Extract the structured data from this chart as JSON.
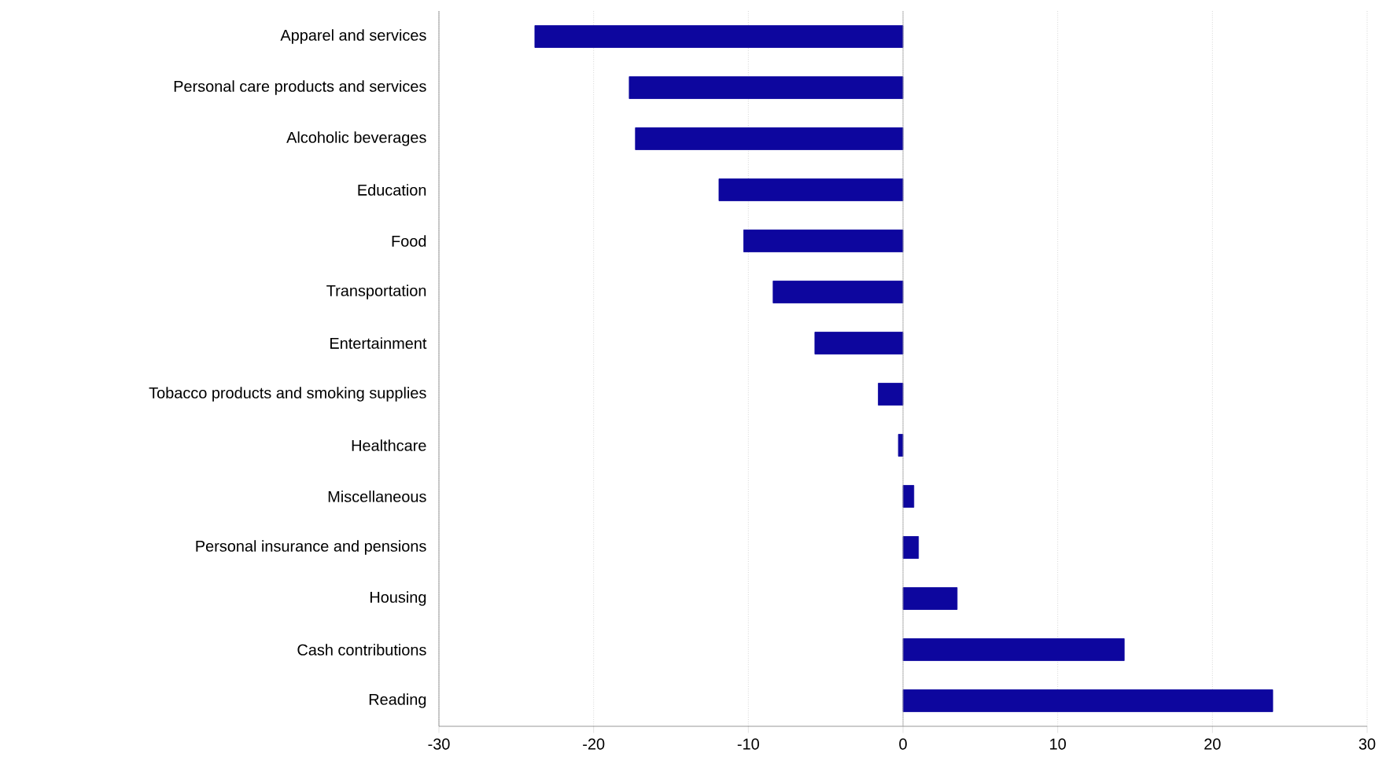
{
  "chart_data": {
    "type": "bar",
    "orientation": "horizontal",
    "categories": [
      "Apparel and services",
      "Personal care products and services",
      "Alcoholic beverages",
      "Education",
      "Food",
      "Transportation",
      "Entertainment",
      "Tobacco products and smoking supplies",
      "Healthcare",
      "Miscellaneous",
      "Personal insurance and pensions",
      "Housing",
      "Cash contributions",
      "Reading"
    ],
    "values": [
      -23.8,
      -17.7,
      -17.3,
      -11.9,
      -10.3,
      -8.4,
      -5.7,
      -1.6,
      -0.3,
      0.7,
      1.0,
      3.5,
      14.3,
      23.9
    ],
    "color": "#0d069e",
    "xlim": [
      -30,
      30
    ],
    "xticks": [
      -30,
      -20,
      -10,
      0,
      10,
      20,
      30
    ],
    "grid": "x",
    "ref_lines": [
      {
        "axis": "x",
        "value": 0,
        "color": "#a6a6a6"
      }
    ]
  }
}
